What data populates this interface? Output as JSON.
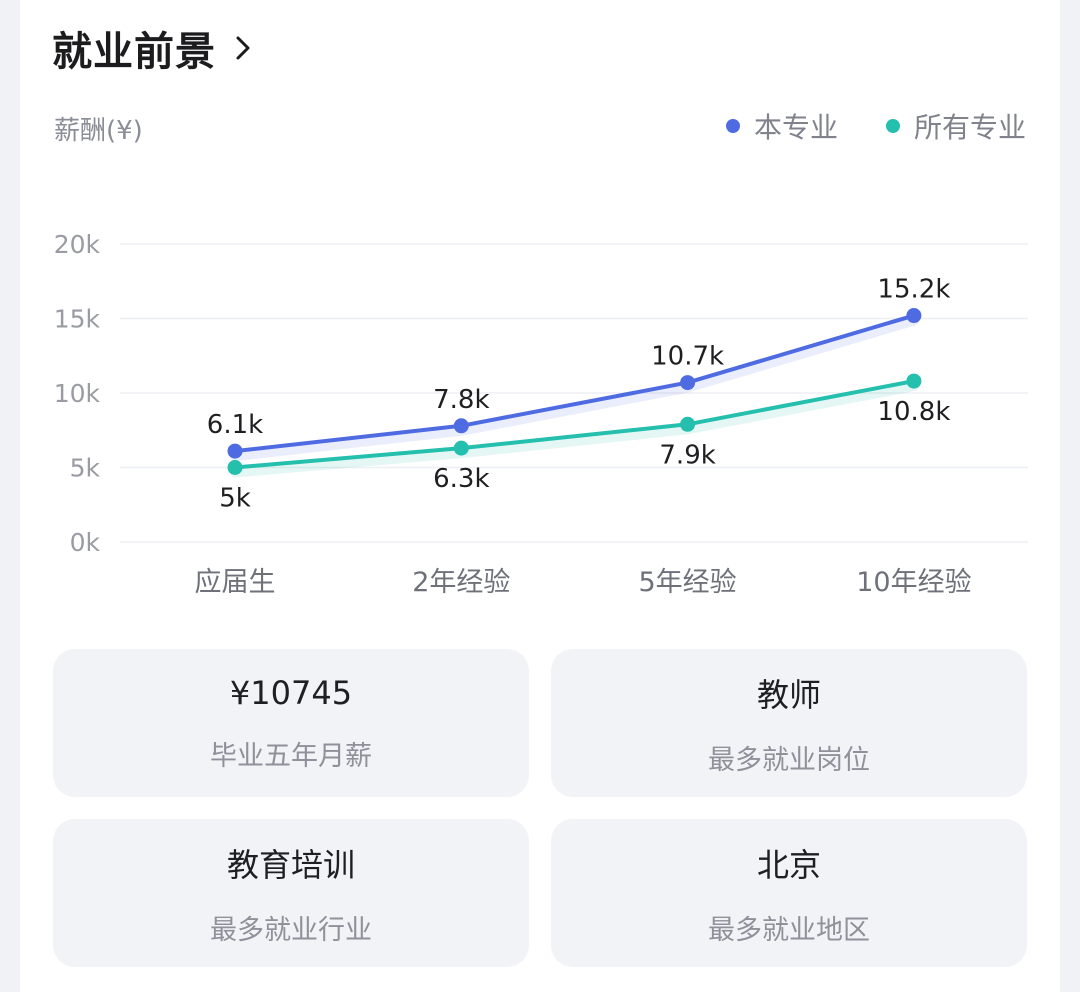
{
  "section": {
    "title": "就业前景"
  },
  "chart_data": {
    "type": "line",
    "ylabel": "薪酬(¥)",
    "categories": [
      "应届生",
      "2年经验",
      "5年经验",
      "10年经验"
    ],
    "yticks": [
      "0k",
      "5k",
      "10k",
      "15k",
      "20k"
    ],
    "ylim": [
      0,
      20
    ],
    "unit": "k",
    "grid": true,
    "legend_position": "top-right",
    "series": [
      {
        "name": "本专业",
        "color": "#4f6be2",
        "values": [
          6.1,
          7.8,
          10.7,
          15.2
        ],
        "labels": [
          "6.1k",
          "7.8k",
          "10.7k",
          "15.2k"
        ],
        "label_position": "above"
      },
      {
        "name": "所有专业",
        "color": "#25bfae",
        "values": [
          5,
          6.3,
          7.9,
          10.8
        ],
        "labels": [
          "5k",
          "6.3k",
          "7.9k",
          "10.8k"
        ],
        "label_position": "below"
      }
    ]
  },
  "stats": [
    {
      "value": "¥10745",
      "label": "毕业五年月薪"
    },
    {
      "value": "教师",
      "label": "最多就业岗位"
    },
    {
      "value": "教育培训",
      "label": "最多就业行业"
    },
    {
      "value": "北京",
      "label": "最多就业地区"
    }
  ]
}
